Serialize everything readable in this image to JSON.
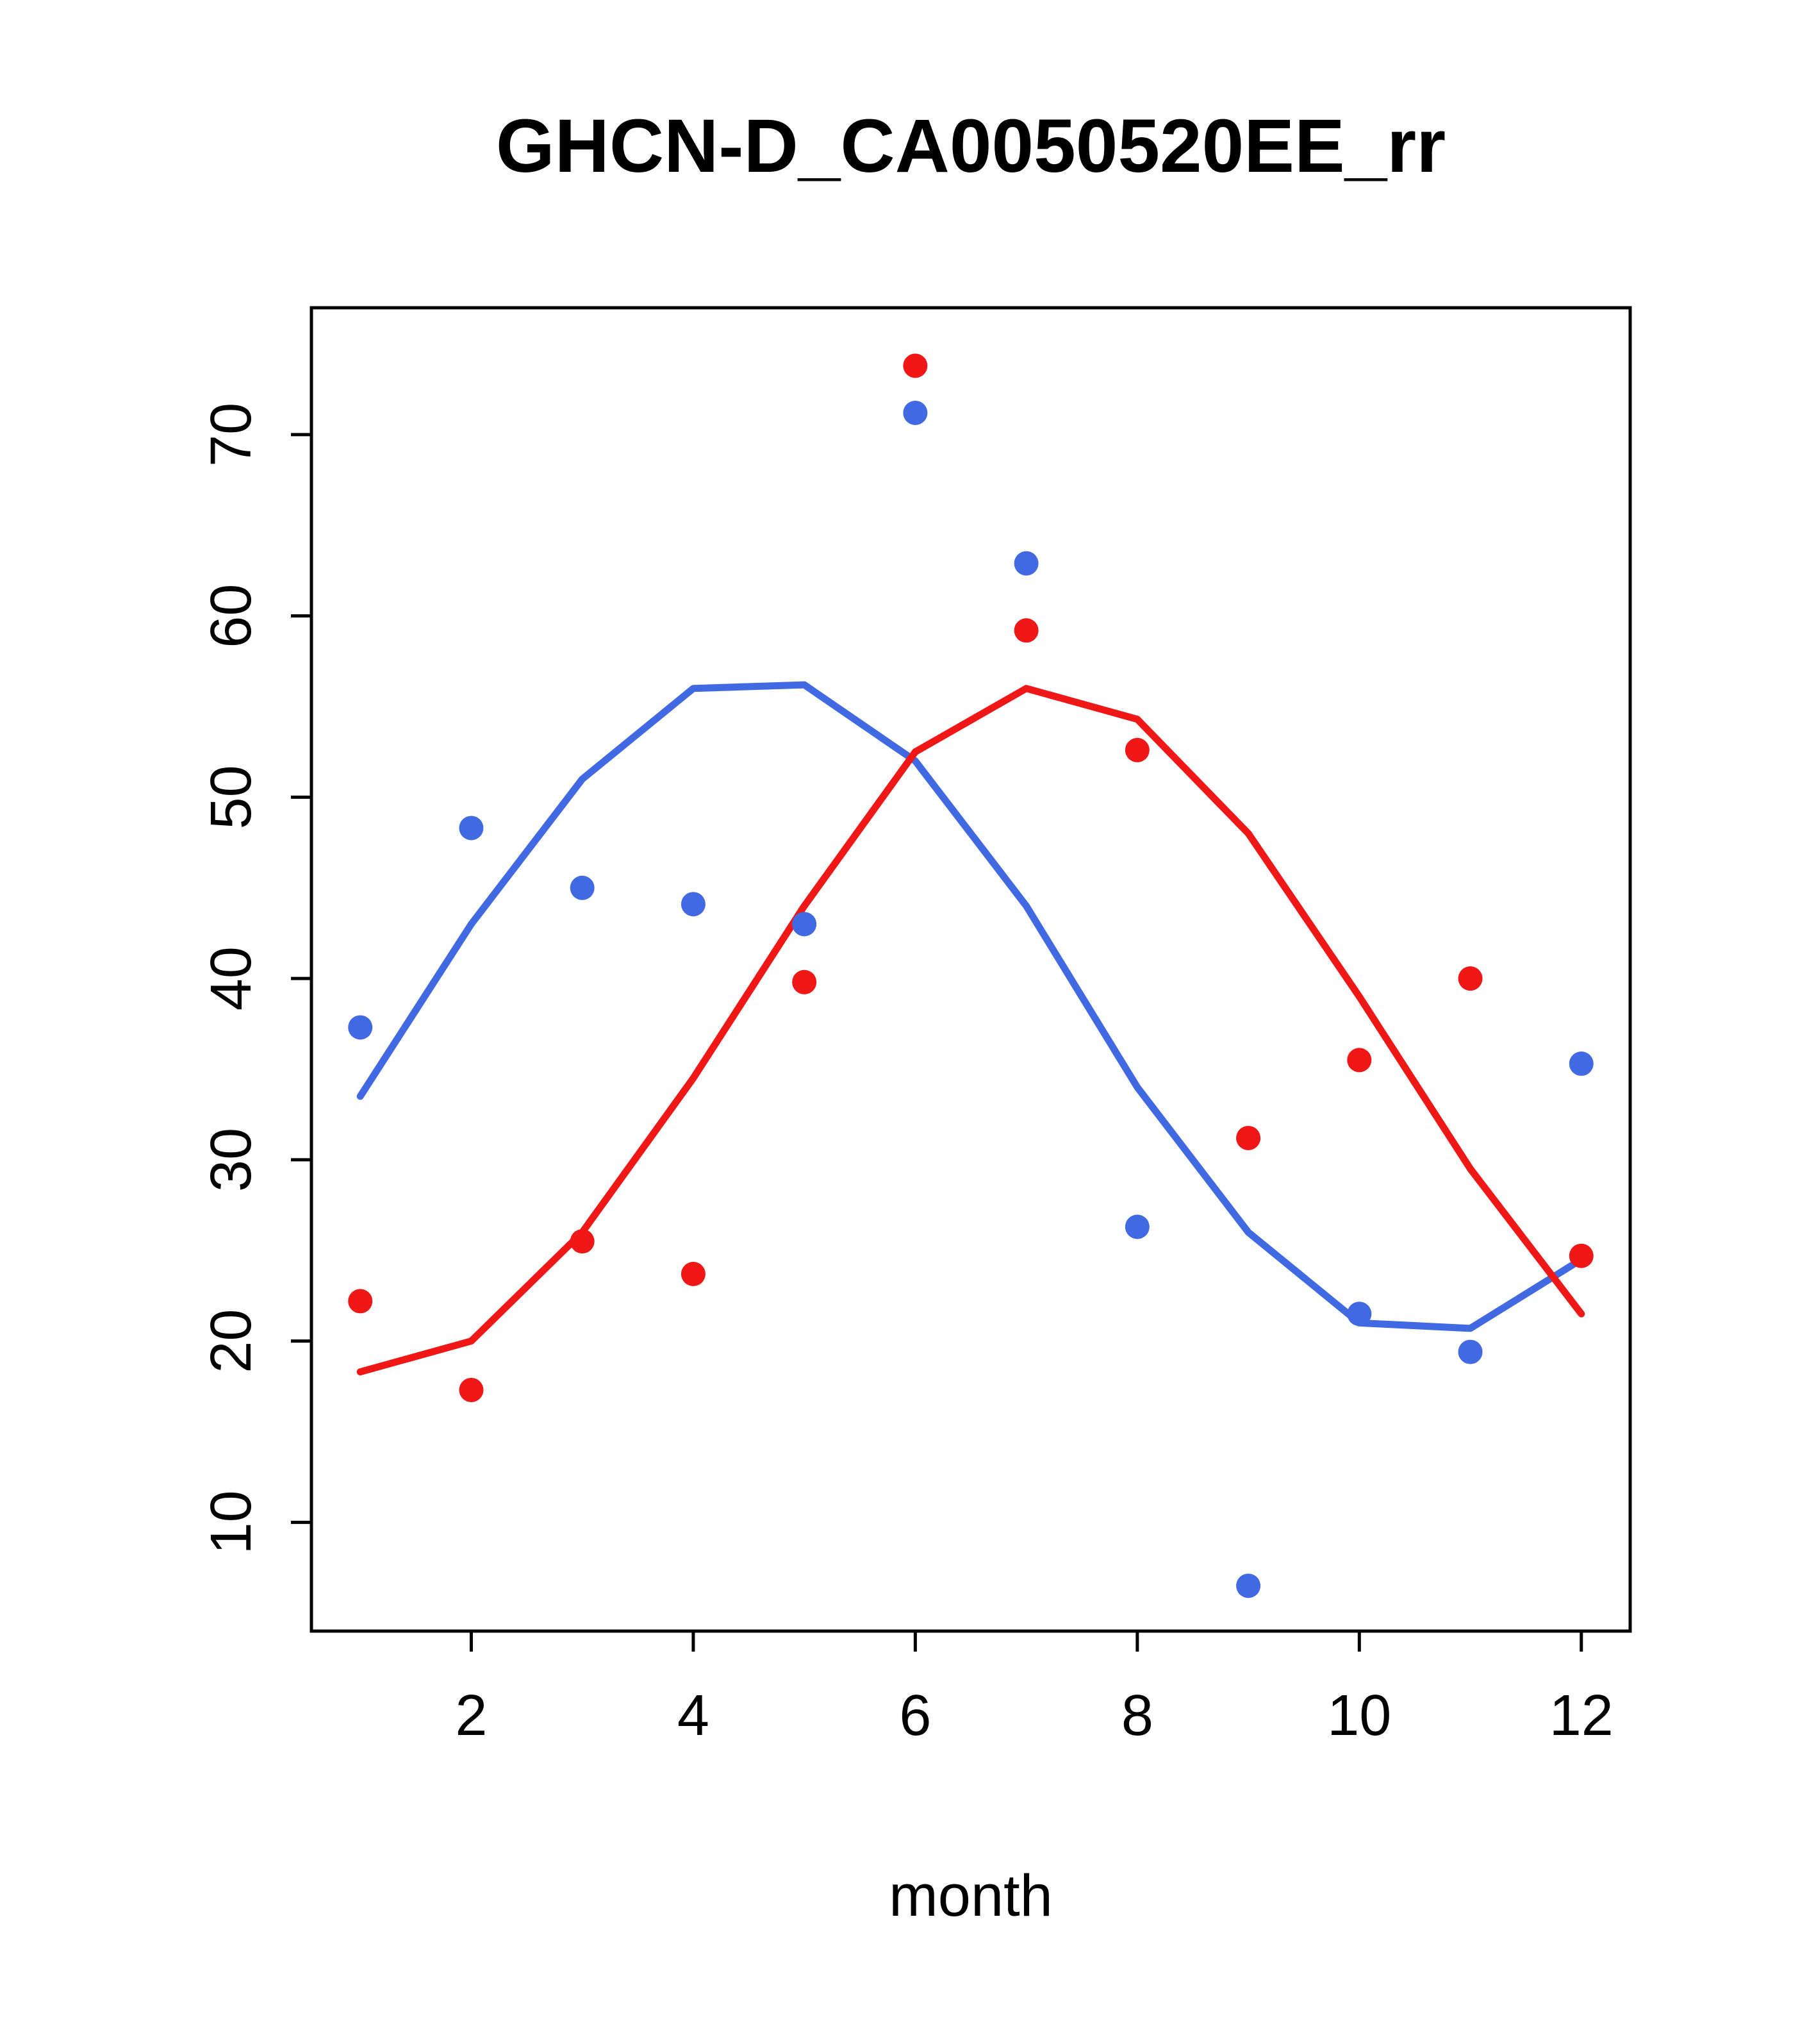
{
  "chart_data": {
    "type": "line",
    "title": "GHCN-D_CA0050520EE_rr",
    "xlabel": "month",
    "ylabel": "",
    "x": [
      1,
      2,
      3,
      4,
      5,
      6,
      7,
      8,
      9,
      10,
      11,
      12
    ],
    "xlim": [
      0.56,
      12.44
    ],
    "ylim": [
      4,
      77
    ],
    "x_ticks": [
      2,
      4,
      6,
      8,
      10,
      12
    ],
    "y_ticks": [
      10,
      20,
      30,
      40,
      50,
      60,
      70
    ],
    "grid": "off",
    "legend": "none",
    "colors": {
      "blue": "#4169E1",
      "red": "#F01717"
    },
    "series": [
      {
        "name": "blue-points",
        "type": "points",
        "color": "#4169E1",
        "values": [
          37.3,
          48.3,
          45.0,
          44.1,
          43.0,
          71.2,
          62.9,
          26.3,
          6.5,
          21.5,
          19.4,
          35.3
        ]
      },
      {
        "name": "red-points",
        "type": "points",
        "color": "#F01717",
        "values": [
          22.2,
          17.3,
          25.5,
          23.7,
          39.8,
          73.8,
          59.2,
          52.6,
          31.2,
          35.5,
          40.0,
          24.7
        ]
      },
      {
        "name": "blue-smooth-line",
        "type": "line",
        "color": "#4169E1",
        "values": [
          33.5,
          43.0,
          51.0,
          56.0,
          56.2,
          52.0,
          44.0,
          34.0,
          26.0,
          21.0,
          20.7,
          24.5
        ]
      },
      {
        "name": "red-smooth-line",
        "type": "line",
        "color": "#F01717",
        "values": [
          18.3,
          20.0,
          26.0,
          34.5,
          44.0,
          52.5,
          56.0,
          54.3,
          48.0,
          39.0,
          29.5,
          21.5
        ]
      }
    ]
  }
}
